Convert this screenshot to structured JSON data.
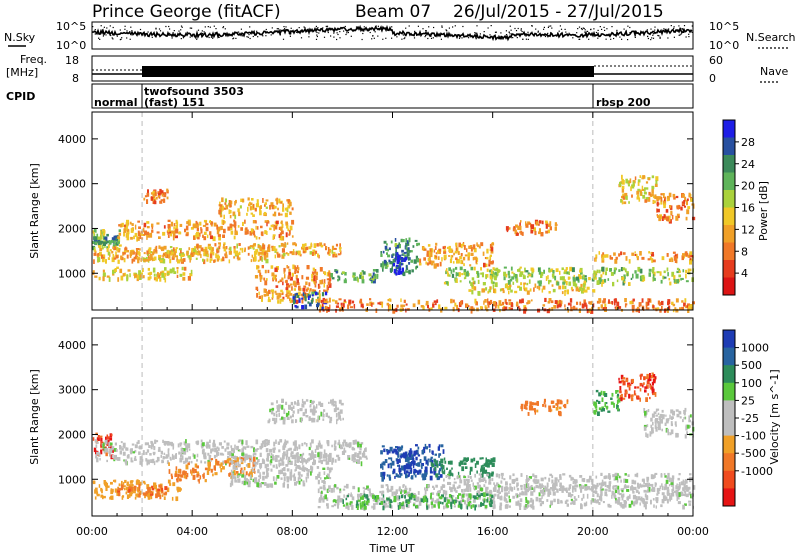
{
  "header": {
    "station": "Prince George (fitACF)",
    "beam": "Beam 07",
    "date_range": "26/Jul/2015 - 27/Jul/2015"
  },
  "noise_panel": {
    "left_label": "N.Sky",
    "ticks_left": [
      "10^5",
      "10^0"
    ],
    "ticks_right": [
      "10^5",
      "10^0"
    ],
    "right_label": "N.Search"
  },
  "freq_panel": {
    "left_label_1": "Freq.",
    "left_label_2": "[MHz]",
    "ticks_left": [
      "18",
      "8"
    ],
    "ticks_right": [
      "60",
      "0"
    ],
    "right_label": "Nave"
  },
  "cpid": {
    "label": "CPID",
    "segments": [
      {
        "name": "normal",
        "start": 0.0,
        "end": 2.0,
        "sub": ""
      },
      {
        "name": "twofsound 3503",
        "start": 2.0,
        "end": 20.0,
        "sub": "(fast) 151"
      },
      {
        "name": "rbsp 200",
        "start": 20.0,
        "end": 24.0,
        "sub": ""
      }
    ]
  },
  "x_axis": {
    "label": "Time UT",
    "ticks": [
      "00:00",
      "04:00",
      "08:00",
      "12:00",
      "16:00",
      "20:00",
      "00:00"
    ]
  },
  "y_axis": {
    "label": "Slant Range [km]",
    "ticks": [
      "1000",
      "2000",
      "3000",
      "4000"
    ]
  },
  "power_colorbar": {
    "label": "Power [dB]",
    "ticks": [
      "4",
      "8",
      "12",
      "16",
      "20",
      "24",
      "28"
    ],
    "colors": [
      "#1e1ee6",
      "#2850a0",
      "#3c8a5a",
      "#5fb45a",
      "#aad23c",
      "#f0c828",
      "#f0a028",
      "#f07828",
      "#e63c1e",
      "#dc1414"
    ]
  },
  "velocity_colorbar": {
    "label": "Velocity [m s^-1]",
    "ticks": [
      "1000",
      "500",
      "100",
      "25",
      "-25",
      "-100",
      "-500",
      "-1000"
    ],
    "colors": [
      "#1e3cb4",
      "#2864a0",
      "#2d8c5a",
      "#5ac83c",
      "#bebebe",
      "#bebebe",
      "#f0a028",
      "#f07828",
      "#f04b1e",
      "#e61414"
    ]
  },
  "chart_data": [
    {
      "type": "heatmap",
      "title": "Power [dB]",
      "xlabel": "Time UT",
      "ylabel": "Slant Range [km]",
      "xlim": [
        0,
        24
      ],
      "ylim": [
        180,
        4600
      ],
      "clim": [
        0,
        32
      ],
      "regions": [
        {
          "t0": 0.0,
          "t1": 1.1,
          "r0": 1550,
          "r1": 2000,
          "value": 18
        },
        {
          "t0": 0.0,
          "t1": 1.0,
          "r0": 1700,
          "r1": 1850,
          "value": 24
        },
        {
          "t0": 0.0,
          "t1": 4.5,
          "r0": 1300,
          "r1": 1650,
          "value": 12
        },
        {
          "t0": 0.0,
          "t1": 4.0,
          "r0": 900,
          "r1": 1150,
          "value": 14
        },
        {
          "t0": 1.0,
          "t1": 8.0,
          "r0": 1800,
          "r1": 2200,
          "value": 11
        },
        {
          "t0": 2.0,
          "t1": 7.0,
          "r0": 1300,
          "r1": 1600,
          "value": 13
        },
        {
          "t0": 4.0,
          "t1": 10.0,
          "r0": 1400,
          "r1": 1700,
          "value": 12
        },
        {
          "t0": 6.5,
          "t1": 9.5,
          "r0": 400,
          "r1": 1200,
          "value": 10
        },
        {
          "t0": 8.0,
          "t1": 9.3,
          "r0": 250,
          "r1": 600,
          "value": 26
        },
        {
          "t0": 9.0,
          "t1": 24.0,
          "r0": 200,
          "r1": 450,
          "value": 9
        },
        {
          "t0": 9.5,
          "t1": 11.5,
          "r0": 850,
          "r1": 1100,
          "value": 22
        },
        {
          "t0": 11.5,
          "t1": 13.0,
          "r0": 1050,
          "r1": 1800,
          "value": 23
        },
        {
          "t0": 12.0,
          "t1": 12.5,
          "r0": 1000,
          "r1": 1500,
          "value": 30
        },
        {
          "t0": 13.0,
          "t1": 16.0,
          "r0": 1200,
          "r1": 1700,
          "value": 11
        },
        {
          "t0": 14.0,
          "t1": 24.0,
          "r0": 800,
          "r1": 1150,
          "value": 18
        },
        {
          "t0": 15.0,
          "t1": 20.0,
          "r0": 600,
          "r1": 800,
          "value": 14
        },
        {
          "t0": 16.5,
          "t1": 18.5,
          "r0": 1900,
          "r1": 2200,
          "value": 9
        },
        {
          "t0": 20.0,
          "t1": 24.0,
          "r0": 1300,
          "r1": 1500,
          "value": 10
        },
        {
          "t0": 21.0,
          "t1": 22.5,
          "r0": 2600,
          "r1": 3200,
          "value": 14
        },
        {
          "t0": 22.5,
          "t1": 24.0,
          "r0": 2200,
          "r1": 2800,
          "value": 9
        },
        {
          "t0": 5.0,
          "t1": 8.0,
          "r0": 2300,
          "r1": 2700,
          "value": 12
        },
        {
          "t0": 2.0,
          "t1": 3.0,
          "r0": 2600,
          "r1": 2900,
          "value": 10
        }
      ]
    },
    {
      "type": "heatmap",
      "title": "Velocity [m s^-1]",
      "xlabel": "Time UT",
      "ylabel": "Slant Range [km]",
      "xlim": [
        0,
        24
      ],
      "ylim": [
        180,
        4600
      ],
      "clim": [
        -1200,
        1200
      ],
      "regions": [
        {
          "t0": 0.0,
          "t1": 0.8,
          "r0": 1550,
          "r1": 2050,
          "value": -1000
        },
        {
          "t0": 0.0,
          "t1": 11.0,
          "r0": 1400,
          "r1": 1900,
          "value": 0
        },
        {
          "t0": 0.0,
          "t1": 3.5,
          "r0": 600,
          "r1": 1000,
          "value": -200
        },
        {
          "t0": 1.0,
          "t1": 3.0,
          "r0": 650,
          "r1": 900,
          "value": -600
        },
        {
          "t0": 3.0,
          "t1": 4.5,
          "r0": 1000,
          "r1": 1400,
          "value": -400
        },
        {
          "t0": 4.5,
          "t1": 6.5,
          "r0": 1100,
          "r1": 1500,
          "value": -300
        },
        {
          "t0": 5.5,
          "t1": 9.5,
          "r0": 900,
          "r1": 1600,
          "value": 0
        },
        {
          "t0": 7.0,
          "t1": 10.0,
          "r0": 2300,
          "r1": 2800,
          "value": 0
        },
        {
          "t0": 9.0,
          "t1": 24.0,
          "r0": 400,
          "r1": 900,
          "value": 0
        },
        {
          "t0": 11.5,
          "t1": 14.0,
          "r0": 1050,
          "r1": 1800,
          "value": 700
        },
        {
          "t0": 12.0,
          "t1": 13.0,
          "r0": 1200,
          "r1": 1700,
          "value": 1100
        },
        {
          "t0": 13.5,
          "t1": 16.0,
          "r0": 1100,
          "r1": 1500,
          "value": 200
        },
        {
          "t0": 14.0,
          "t1": 24.0,
          "r0": 800,
          "r1": 1150,
          "value": 0
        },
        {
          "t0": 10.0,
          "t1": 16.0,
          "r0": 400,
          "r1": 700,
          "value": 60
        },
        {
          "t0": 21.0,
          "t1": 22.5,
          "r0": 2800,
          "r1": 3400,
          "value": -800
        },
        {
          "t0": 20.0,
          "t1": 21.0,
          "r0": 2500,
          "r1": 3000,
          "value": 60
        },
        {
          "t0": 22.0,
          "t1": 24.0,
          "r0": 2000,
          "r1": 2600,
          "value": 0
        },
        {
          "t0": 17.0,
          "t1": 19.0,
          "r0": 2500,
          "r1": 2800,
          "value": -400
        }
      ]
    }
  ]
}
